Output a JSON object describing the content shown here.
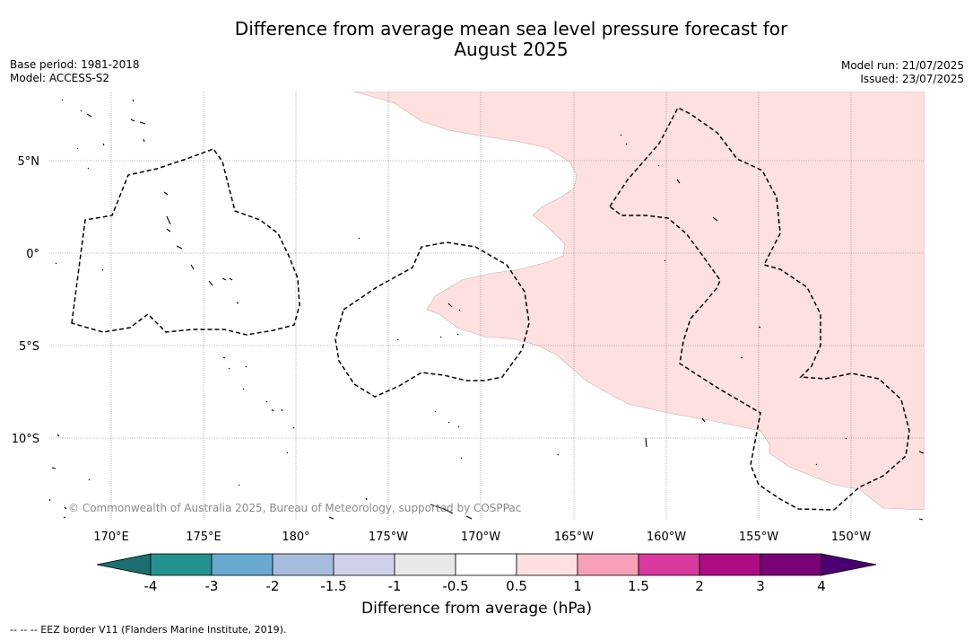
{
  "title_line1": "Difference from average mean sea level pressure forecast for",
  "title_line2": "August 2025",
  "meta": {
    "base_period": "Base period: 1981-2018",
    "model": "Model: ACCESS-S2",
    "model_run": "Model run: 21/07/2025",
    "issued": "Issued: 23/07/2025"
  },
  "map": {
    "lat_labels": [
      "5°N",
      "0°",
      "5°S",
      "10°S"
    ],
    "lon_labels": [
      "170°E",
      "175°E",
      "180°",
      "175°W",
      "170°W",
      "165°W",
      "160°W",
      "155°W",
      "150°W"
    ],
    "copyright": "© Commonwealth of Australia 2025, Bureau of Meteorology, supported by COSPPac",
    "anomaly_fill_color": "#fde0df",
    "eez_border_style": "dashed"
  },
  "colorbar": {
    "title": "Difference from average (hPa)",
    "tick_labels": [
      "-4",
      "-3",
      "-2",
      "-1.5",
      "-1",
      "-0.5",
      "0.5",
      "1",
      "1.5",
      "2",
      "3",
      "4"
    ],
    "colors": [
      "#1a7070",
      "#22918f",
      "#68a9d0",
      "#a7bbdc",
      "#cfd1e8",
      "#e8e8e8",
      "#ffffff",
      "#fde0df",
      "#f7a0b7",
      "#d83a9e",
      "#ad0c82",
      "#7a0378",
      "#4b0071"
    ]
  },
  "footnote": "--  --  -- EEZ border V11 (Flanders Marine Institute, 2019)."
}
